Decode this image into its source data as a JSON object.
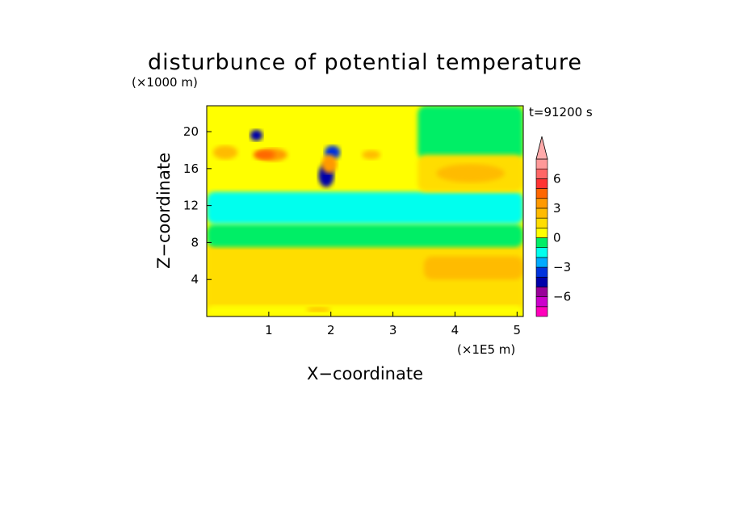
{
  "chart_data": {
    "type": "heatmap",
    "title": "disturbunce of potential temperature",
    "time_label": "t=91200 s",
    "xlabel": "X−coordinate",
    "ylabel": "Z−coordinate",
    "x_unit": "(×1E5 m)",
    "y_unit": "(×1000 m)",
    "xlim": [
      0,
      5.1
    ],
    "ylim": [
      0,
      22.8
    ],
    "x_ticks": [
      {
        "value": 1,
        "label": "1"
      },
      {
        "value": 2,
        "label": "2"
      },
      {
        "value": 3,
        "label": "3"
      },
      {
        "value": 4,
        "label": "4"
      },
      {
        "value": 5,
        "label": "5"
      }
    ],
    "y_ticks": [
      {
        "value": 4,
        "label": "4"
      },
      {
        "value": 8,
        "label": "8"
      },
      {
        "value": 12,
        "label": "12"
      },
      {
        "value": 16,
        "label": "16"
      },
      {
        "value": 20,
        "label": "20"
      }
    ],
    "colorbar": {
      "levels": [
        -8,
        -7,
        -6,
        -5,
        -4,
        -3,
        -2,
        -1,
        0,
        1,
        2,
        3,
        4,
        5,
        6,
        7,
        8
      ],
      "colors": [
        "#ff00bb",
        "#cc00cc",
        "#990099",
        "#0000aa",
        "#0033dd",
        "#00aaff",
        "#00ffee",
        "#00ee66",
        "#ffff00",
        "#ffdd00",
        "#ffbb00",
        "#ff9900",
        "#ff6600",
        "#ff3333",
        "#ff6666",
        "#ff9999",
        "#ffaaaa"
      ],
      "over_color": "#ffaaaa",
      "labeled_levels": [
        {
          "value": 6,
          "label": "6"
        },
        {
          "value": 3,
          "label": "3"
        },
        {
          "value": 0,
          "label": "0"
        },
        {
          "value": -3,
          "label": "−3"
        },
        {
          "value": -6,
          "label": "−6"
        }
      ]
    },
    "regions": [
      {
        "value": 1.5,
        "x": [
          0,
          5.1
        ],
        "z": [
          0.3,
          8.2
        ]
      },
      {
        "value": 0.3,
        "x": [
          0,
          5.1
        ],
        "z": [
          0,
          1.2
        ]
      },
      {
        "value": -0.5,
        "x": [
          0,
          5.1
        ],
        "z": [
          7.5,
          10
        ]
      },
      {
        "value": -1.5,
        "x": [
          0,
          5.1
        ],
        "z": [
          10,
          13.5
        ]
      },
      {
        "value": 0.5,
        "x": [
          0,
          5.1
        ],
        "z": [
          14,
          22.8
        ]
      },
      {
        "value": -0.5,
        "x": [
          3.4,
          5.1
        ],
        "z": [
          17,
          22.8
        ]
      },
      {
        "value": 2.5,
        "x": [
          3.5,
          5.1
        ],
        "z": [
          4.0,
          6.5
        ]
      },
      {
        "value": 1.5,
        "x": [
          3.4,
          5.1
        ],
        "z": [
          13.5,
          17.5
        ]
      },
      {
        "value": 2.5,
        "x": [
          3.7,
          4.8
        ],
        "z": [
          14.5,
          16.5
        ]
      },
      {
        "value": 3.5,
        "x": [
          0.8,
          1.3
        ],
        "z": [
          16.8,
          18.2
        ]
      },
      {
        "value": 4.5,
        "x": [
          0.75,
          1.1
        ],
        "z": [
          17.0,
          18.0
        ]
      },
      {
        "value": 2.5,
        "x": [
          0.1,
          0.5
        ],
        "z": [
          17.0,
          18.5
        ]
      },
      {
        "value": -4.5,
        "x": [
          0.7,
          0.9
        ],
        "z": [
          19.0,
          20.2
        ]
      },
      {
        "value": -4.5,
        "x": [
          1.8,
          2.05
        ],
        "z": [
          14.0,
          16.5
        ]
      },
      {
        "value": -3.5,
        "x": [
          1.9,
          2.15
        ],
        "z": [
          17.0,
          18.5
        ]
      },
      {
        "value": 3.5,
        "x": [
          1.85,
          2.1
        ],
        "z": [
          15.5,
          17.5
        ]
      },
      {
        "value": 2.5,
        "x": [
          2.5,
          2.8
        ],
        "z": [
          17.0,
          18.0
        ]
      },
      {
        "value": 2.5,
        "x": [
          1.6,
          2.0
        ],
        "z": [
          0.5,
          1.0
        ]
      }
    ]
  }
}
